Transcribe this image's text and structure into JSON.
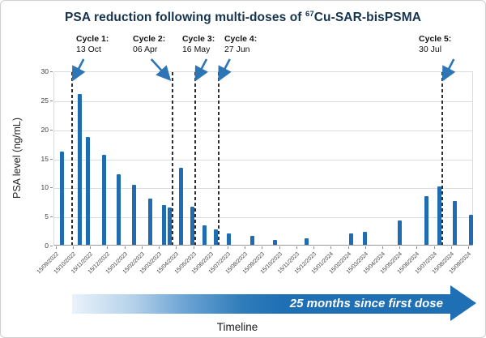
{
  "header": {
    "title_prefix": "PSA reduction following multi-doses of ",
    "title_isotope": "67",
    "title_suffix": "Cu-SAR-bisPSMA"
  },
  "colors": {
    "bar": "#1f6cb3",
    "title": "#16334d",
    "cycle_arrow": "#2e75b6",
    "banner_solid": "#1e6fb4",
    "banner_light": "#eaf3fb",
    "gridline": "#dcdcdc",
    "dashed_line": "#2d2d2d"
  },
  "chart_data": {
    "type": "bar",
    "title": "PSA reduction following multi-doses of 67Cu-SAR-bisPSMA",
    "ylabel": "PSA level (ng/mL)",
    "xlabel": "Timeline",
    "ylim": [
      0,
      30
    ],
    "yticks": [
      0,
      5,
      10,
      15,
      20,
      25,
      30
    ],
    "grid": "horizontal",
    "x_tick_labels": [
      "15/09/2022",
      "15/10/2022",
      "15/11/2022",
      "15/12/2022",
      "15/01/2023",
      "15/02/2023",
      "15/03/2023",
      "15/04/2023",
      "15/05/2023",
      "15/06/2023",
      "15/07/2023",
      "15/08/2023",
      "15/09/2023",
      "15/10/2023",
      "15/11/2023",
      "15/12/2023",
      "15/01/2024",
      "15/02/2024",
      "15/03/2024",
      "15/04/2024",
      "15/05/2024",
      "15/06/2024",
      "15/07/2024",
      "15/08/2024",
      "15/09/2024"
    ],
    "x_axis_note": "bars placed along continuous timeline; pos = fraction of plot width",
    "bars": [
      {
        "pos": 0.0193,
        "psa": 16.0
      },
      {
        "pos": 0.0612,
        "psa": 26.0
      },
      {
        "pos": 0.0792,
        "psa": 18.6
      },
      {
        "pos": 0.1191,
        "psa": 15.5
      },
      {
        "pos": 0.1544,
        "psa": 12.2
      },
      {
        "pos": 0.1898,
        "psa": 10.3
      },
      {
        "pos": 0.2288,
        "psa": 7.9
      },
      {
        "pos": 0.2625,
        "psa": 6.8
      },
      {
        "pos": 0.2751,
        "psa": 6.4
      },
      {
        "pos": 0.3025,
        "psa": 13.3
      },
      {
        "pos": 0.3301,
        "psa": 6.5
      },
      {
        "pos": 0.3585,
        "psa": 3.4
      },
      {
        "pos": 0.3842,
        "psa": 2.6
      },
      {
        "pos": 0.4151,
        "psa": 2.0
      },
      {
        "pos": 0.4716,
        "psa": 1.5
      },
      {
        "pos": 0.527,
        "psa": 0.9
      },
      {
        "pos": 0.6004,
        "psa": 1.1
      },
      {
        "pos": 0.7079,
        "psa": 2.0
      },
      {
        "pos": 0.74,
        "psa": 2.3
      },
      {
        "pos": 0.8237,
        "psa": 4.2
      },
      {
        "pos": 0.8867,
        "psa": 8.4
      },
      {
        "pos": 0.917,
        "psa": 10.1
      },
      {
        "pos": 0.9537,
        "psa": 7.6
      },
      {
        "pos": 0.9923,
        "psa": 5.2
      }
    ],
    "cycles": [
      {
        "label": "Cycle 1:",
        "date": "13 Oct",
        "line_pos": 0.043,
        "label_pos": 0.0541,
        "arrow": "down-left"
      },
      {
        "label": "Cycle 2:",
        "date": "06 Apr",
        "line_pos": 0.2813,
        "label_pos": 0.1892,
        "arrow": "down-right"
      },
      {
        "label": "Cycle 3:",
        "date": "16 May",
        "line_pos": 0.3359,
        "label_pos": 0.3069,
        "arrow": "down-left"
      },
      {
        "label": "Cycle 4:",
        "date": "27 Jun",
        "line_pos": 0.3913,
        "label_pos": 0.4073,
        "arrow": "down-left"
      },
      {
        "label": "Cycle 5:",
        "date": "30 Jul",
        "line_pos": 0.9253,
        "label_pos": 0.8707,
        "arrow": "down-left"
      }
    ],
    "banner_text": "25 months since first dose",
    "legend": null
  }
}
